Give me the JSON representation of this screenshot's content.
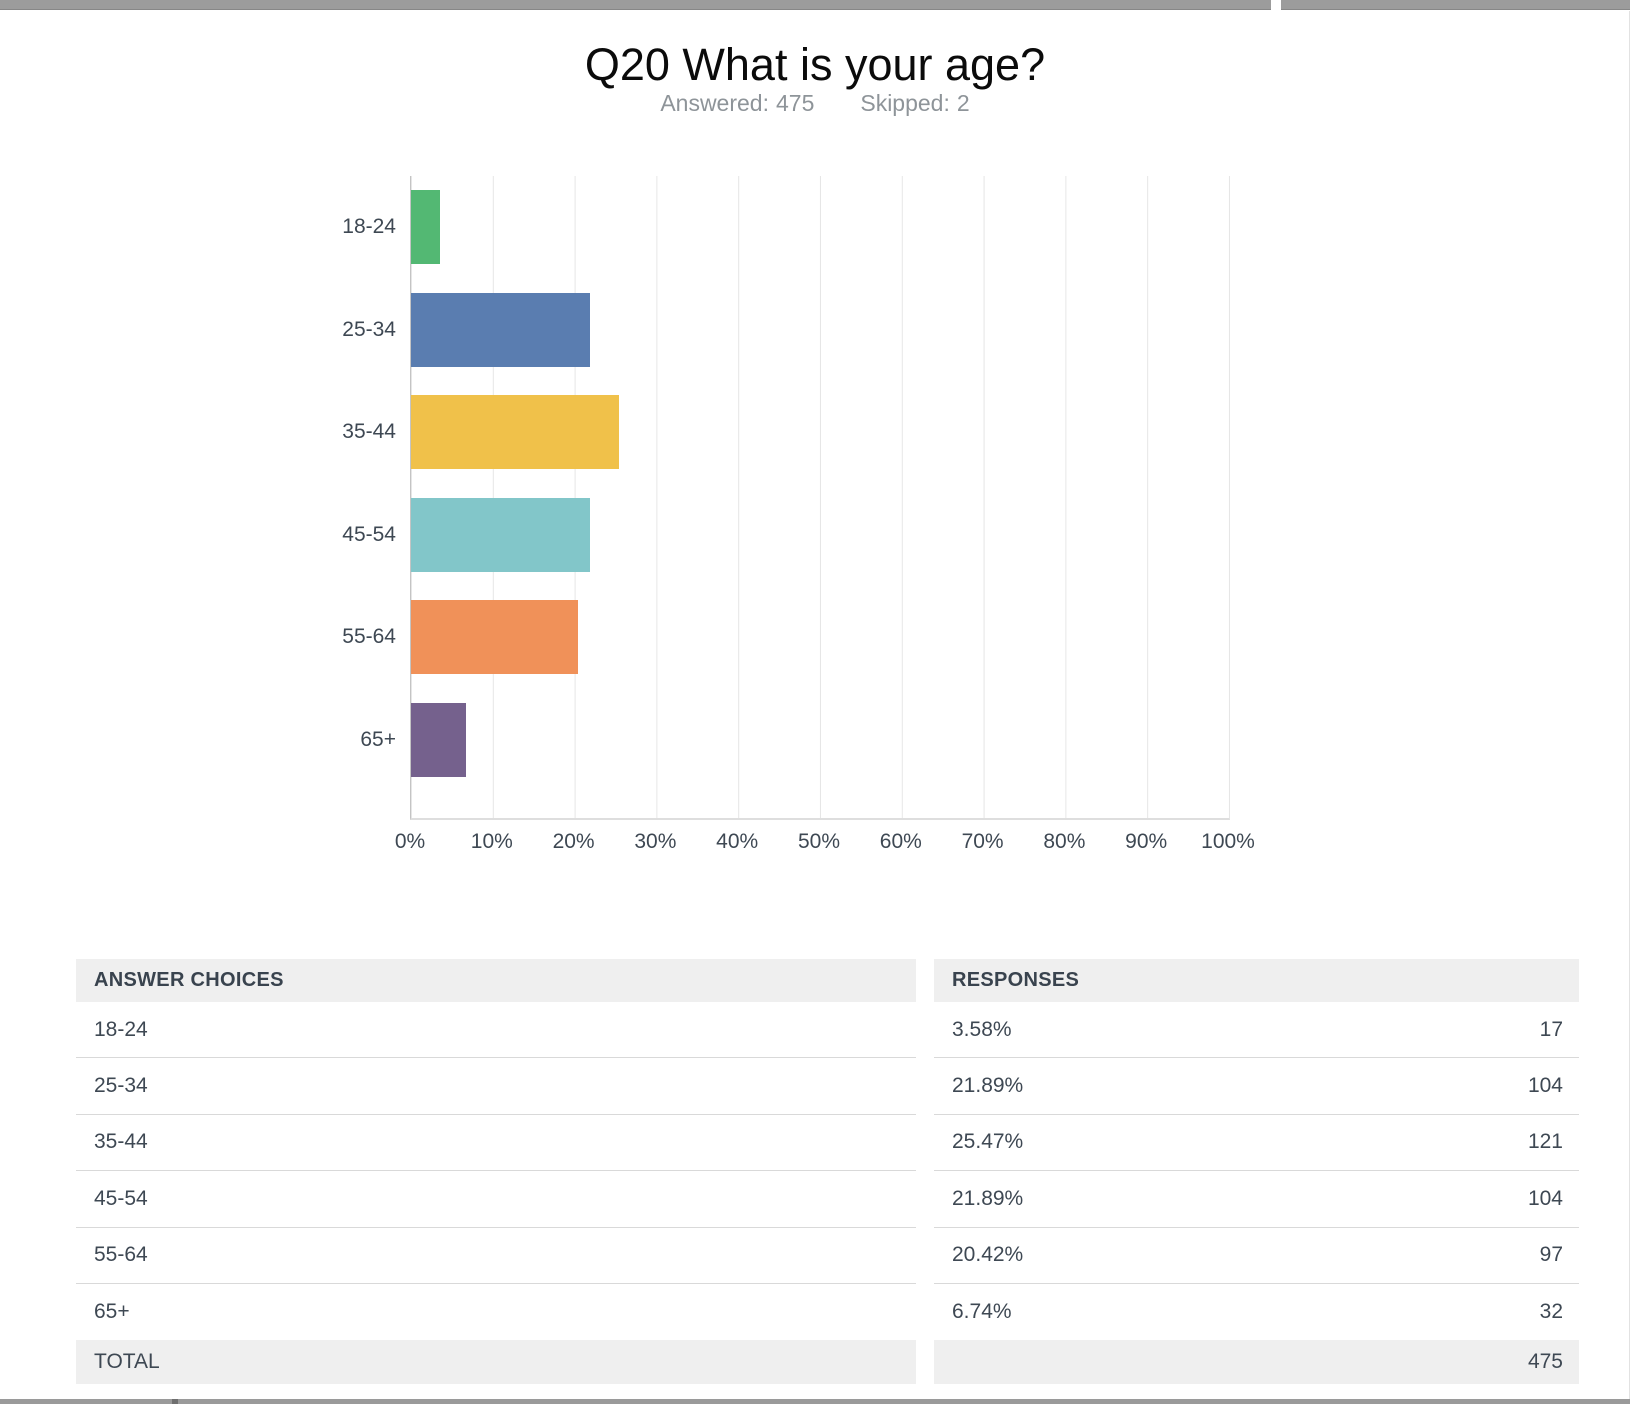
{
  "header": {
    "title": "Q20 What is your age?",
    "answered_label": "Answered:",
    "answered_value": "475",
    "skipped_label": "Skipped:",
    "skipped_value": "2"
  },
  "chart_data": {
    "type": "bar",
    "orientation": "horizontal",
    "title": "Q20 What is your age?",
    "categories": [
      "18-24",
      "25-34",
      "35-44",
      "45-54",
      "55-64",
      "65+"
    ],
    "values": [
      3.58,
      21.89,
      25.47,
      21.89,
      20.42,
      6.74
    ],
    "value_unit": "%",
    "bar_colors": [
      "#53b873",
      "#5a7db0",
      "#f0c14a",
      "#82c6c9",
      "#f09159",
      "#75618d"
    ],
    "xlabel": "",
    "ylabel": "",
    "xlim": [
      0,
      100
    ],
    "x_tick_labels": [
      "0%",
      "10%",
      "20%",
      "30%",
      "40%",
      "50%",
      "60%",
      "70%",
      "80%",
      "90%",
      "100%"
    ],
    "grid": true,
    "legend": false
  },
  "table": {
    "columns": [
      "ANSWER CHOICES",
      "RESPONSES"
    ],
    "rows": [
      {
        "choice": "18-24",
        "percent": "3.58%",
        "count": "17"
      },
      {
        "choice": "25-34",
        "percent": "21.89%",
        "count": "104"
      },
      {
        "choice": "35-44",
        "percent": "25.47%",
        "count": "121"
      },
      {
        "choice": "45-54",
        "percent": "21.89%",
        "count": "104"
      },
      {
        "choice": "55-64",
        "percent": "20.42%",
        "count": "97"
      },
      {
        "choice": "65+",
        "percent": "6.74%",
        "count": "32"
      }
    ],
    "total_label": "TOTAL",
    "total_value": "475"
  },
  "colors": {
    "accent_text": "#3e4853",
    "muted_text": "#8e9499",
    "gridline": "#e6e6e6",
    "axis_line": "#c4c4c4",
    "header_row_bg": "#efefef",
    "row_divider": "#d9d9d9"
  }
}
